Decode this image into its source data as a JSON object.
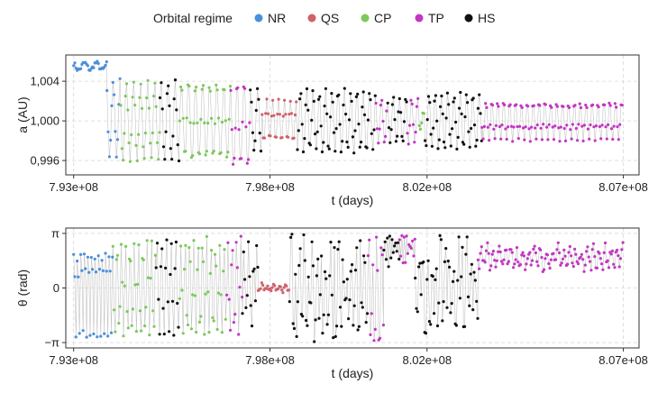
{
  "legend": {
    "title": "Orbital regime",
    "items": [
      {
        "label": "NR",
        "color": "#4a90d9"
      },
      {
        "label": "QS",
        "color": "#d0606a"
      },
      {
        "label": "CP",
        "color": "#7cc95a"
      },
      {
        "label": "TP",
        "color": "#c236c2"
      },
      {
        "label": "HS",
        "color": "#111111"
      }
    ]
  },
  "chart_data": [
    {
      "type": "scatter",
      "title": "",
      "xlabel": "t (days)",
      "ylabel": "a (AU)",
      "xlim": [
        792800000,
        807400000
      ],
      "ylim": [
        0.99455,
        1.00665
      ],
      "xticks": [
        793000000,
        798000000,
        802000000,
        807000000
      ],
      "xtick_labels": [
        "7.93e+08",
        "7.98e+08",
        "8.02e+08",
        "8.07e+08"
      ],
      "yticks": [
        0.996,
        1.0,
        1.004
      ],
      "ytick_labels": [
        "0,996",
        "1,000",
        "1,004"
      ],
      "grid": true,
      "connecting_line": true,
      "segments": [
        {
          "regime": "NR",
          "t_start": 793000000,
          "t_end": 793850000,
          "mode": "band",
          "center": 1.0055,
          "amp": 0.0006,
          "period": 300000
        },
        {
          "regime": "NR",
          "t_start": 793850000,
          "t_end": 794200000,
          "mode": "sine",
          "center": 1.0003,
          "amp": 0.0042,
          "period": 180000
        },
        {
          "regime": "CP",
          "t_start": 794200000,
          "t_end": 795200000,
          "mode": "sine",
          "center": 1.0,
          "amp": 0.0042,
          "period": 180000
        },
        {
          "regime": "HS",
          "t_start": 795200000,
          "t_end": 795700000,
          "mode": "sine",
          "center": 1.0,
          "amp": 0.0042,
          "period": 180000
        },
        {
          "regime": "CP",
          "t_start": 795700000,
          "t_end": 797000000,
          "mode": "sine",
          "center": 1.0,
          "amp": 0.0042,
          "period": 180000
        },
        {
          "regime": "TP",
          "t_start": 797000000,
          "t_end": 797500000,
          "mode": "sine",
          "center": 0.9995,
          "amp": 0.0045,
          "period": 180000
        },
        {
          "regime": "HS",
          "t_start": 797500000,
          "t_end": 797800000,
          "mode": "sine",
          "center": 1.0,
          "amp": 0.0035,
          "period": 180000
        },
        {
          "regime": "QS",
          "t_start": 797800000,
          "t_end": 798700000,
          "mode": "sine",
          "center": 1.0,
          "amp": 0.0022,
          "period": 150000
        },
        {
          "regime": "HS",
          "t_start": 798700000,
          "t_end": 800700000,
          "mode": "sine",
          "center": 1.0,
          "amp": 0.0033,
          "period": 160000
        },
        {
          "regime": "TP",
          "t_start": 800700000,
          "t_end": 801000000,
          "mode": "sine",
          "center": 1.0,
          "amp": 0.0025,
          "period": 160000
        },
        {
          "regime": "HS",
          "t_start": 801000000,
          "t_end": 801500000,
          "mode": "sine",
          "center": 1.0,
          "amp": 0.0025,
          "period": 160000
        },
        {
          "regime": "TP",
          "t_start": 801500000,
          "t_end": 801800000,
          "mode": "sine",
          "center": 1.0,
          "amp": 0.0025,
          "period": 160000
        },
        {
          "regime": "CP",
          "t_start": 801800000,
          "t_end": 801950000,
          "mode": "sine",
          "center": 1.0,
          "amp": 0.001,
          "period": 160000
        },
        {
          "regime": "HS",
          "t_start": 801950000,
          "t_end": 803400000,
          "mode": "sine",
          "center": 1.0,
          "amp": 0.003,
          "period": 160000
        },
        {
          "regime": "TP",
          "t_start": 803400000,
          "t_end": 807000000,
          "mode": "sine",
          "center": 1.0,
          "amp": 0.0021,
          "period": 150000
        }
      ]
    },
    {
      "type": "scatter",
      "title": "",
      "xlabel": "t (days)",
      "ylabel": "θ (rad)",
      "xlim": [
        792800000,
        807400000
      ],
      "ylim": [
        -3.45,
        3.45
      ],
      "xticks": [
        793000000,
        798000000,
        802000000,
        807000000
      ],
      "xtick_labels": [
        "7.93e+08",
        "7.98e+08",
        "8.02e+08",
        "8.07e+08"
      ],
      "yticks": [
        -3.14159,
        0,
        3.14159
      ],
      "ytick_labels": [
        "−π",
        "0",
        "π"
      ],
      "grid": true,
      "connecting_line": true,
      "segments": [
        {
          "regime": "NR",
          "t_start": 793000000,
          "t_end": 794000000,
          "mode": "full",
          "period": 90000
        },
        {
          "regime": "CP",
          "t_start": 794000000,
          "t_end": 795100000,
          "mode": "full",
          "period": 110000
        },
        {
          "regime": "HS",
          "t_start": 795100000,
          "t_end": 795700000,
          "mode": "full",
          "period": 120000
        },
        {
          "regime": "CP",
          "t_start": 795700000,
          "t_end": 796900000,
          "mode": "full",
          "period": 110000
        },
        {
          "regime": "TP",
          "t_start": 796900000,
          "t_end": 797300000,
          "mode": "full",
          "period": 110000
        },
        {
          "regime": "HS",
          "t_start": 797300000,
          "t_end": 797700000,
          "mode": "gap",
          "period": 110000
        },
        {
          "regime": "QS",
          "t_start": 797700000,
          "t_end": 798500000,
          "mode": "band",
          "center": 0.0,
          "amp": 0.35,
          "period": 150000
        },
        {
          "regime": "HS",
          "t_start": 798500000,
          "t_end": 800500000,
          "mode": "gap",
          "period": 110000
        },
        {
          "regime": "TP",
          "t_start": 800500000,
          "t_end": 800900000,
          "mode": "gap",
          "period": 110000
        },
        {
          "regime": "HS",
          "t_start": 800900000,
          "t_end": 801300000,
          "mode": "high",
          "period": 110000
        },
        {
          "regime": "TP",
          "t_start": 801300000,
          "t_end": 801700000,
          "mode": "high",
          "period": 110000
        },
        {
          "regime": "HS",
          "t_start": 801700000,
          "t_end": 803300000,
          "mode": "gap",
          "period": 110000
        },
        {
          "regime": "TP",
          "t_start": 803300000,
          "t_end": 807000000,
          "mode": "band",
          "center": 1.75,
          "amp": 0.9,
          "period": 150000
        }
      ]
    }
  ]
}
